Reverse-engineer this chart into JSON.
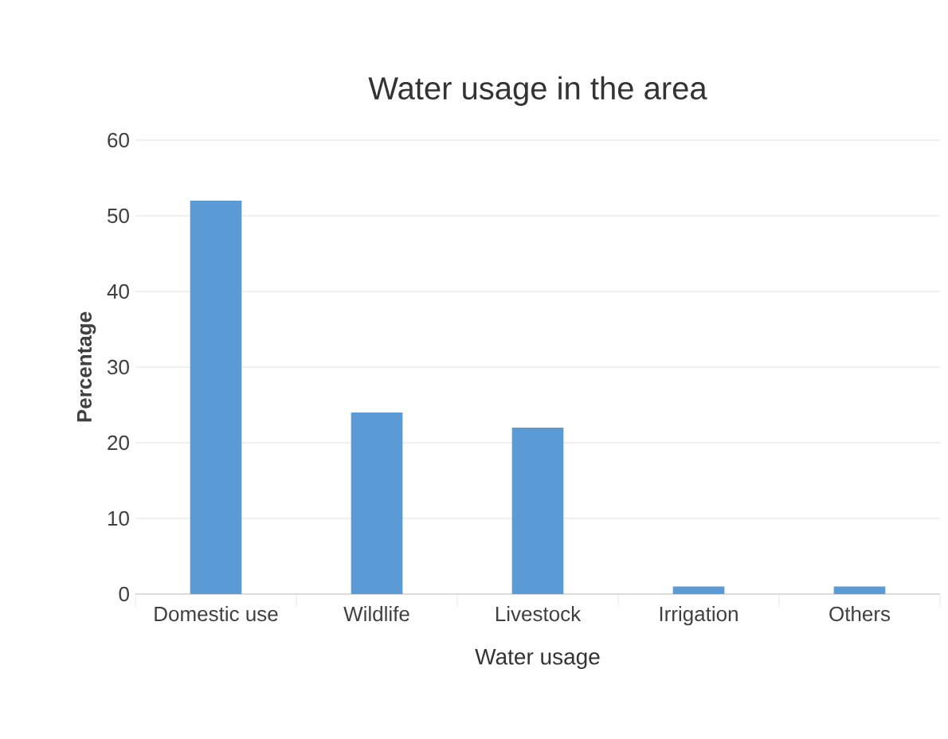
{
  "chart_data": {
    "type": "bar",
    "title": "Water usage in the area",
    "xlabel": "Water usage",
    "ylabel": "Percentage",
    "categories": [
      "Domestic use",
      "Wildlife",
      "Livestock",
      "Irrigation",
      "Others"
    ],
    "values": [
      52,
      24,
      22,
      1,
      1
    ],
    "color": "#5b9bd5",
    "ylim": [
      0,
      60
    ],
    "yticks": [
      0,
      10,
      20,
      30,
      40,
      50,
      60
    ],
    "grid": "y"
  }
}
